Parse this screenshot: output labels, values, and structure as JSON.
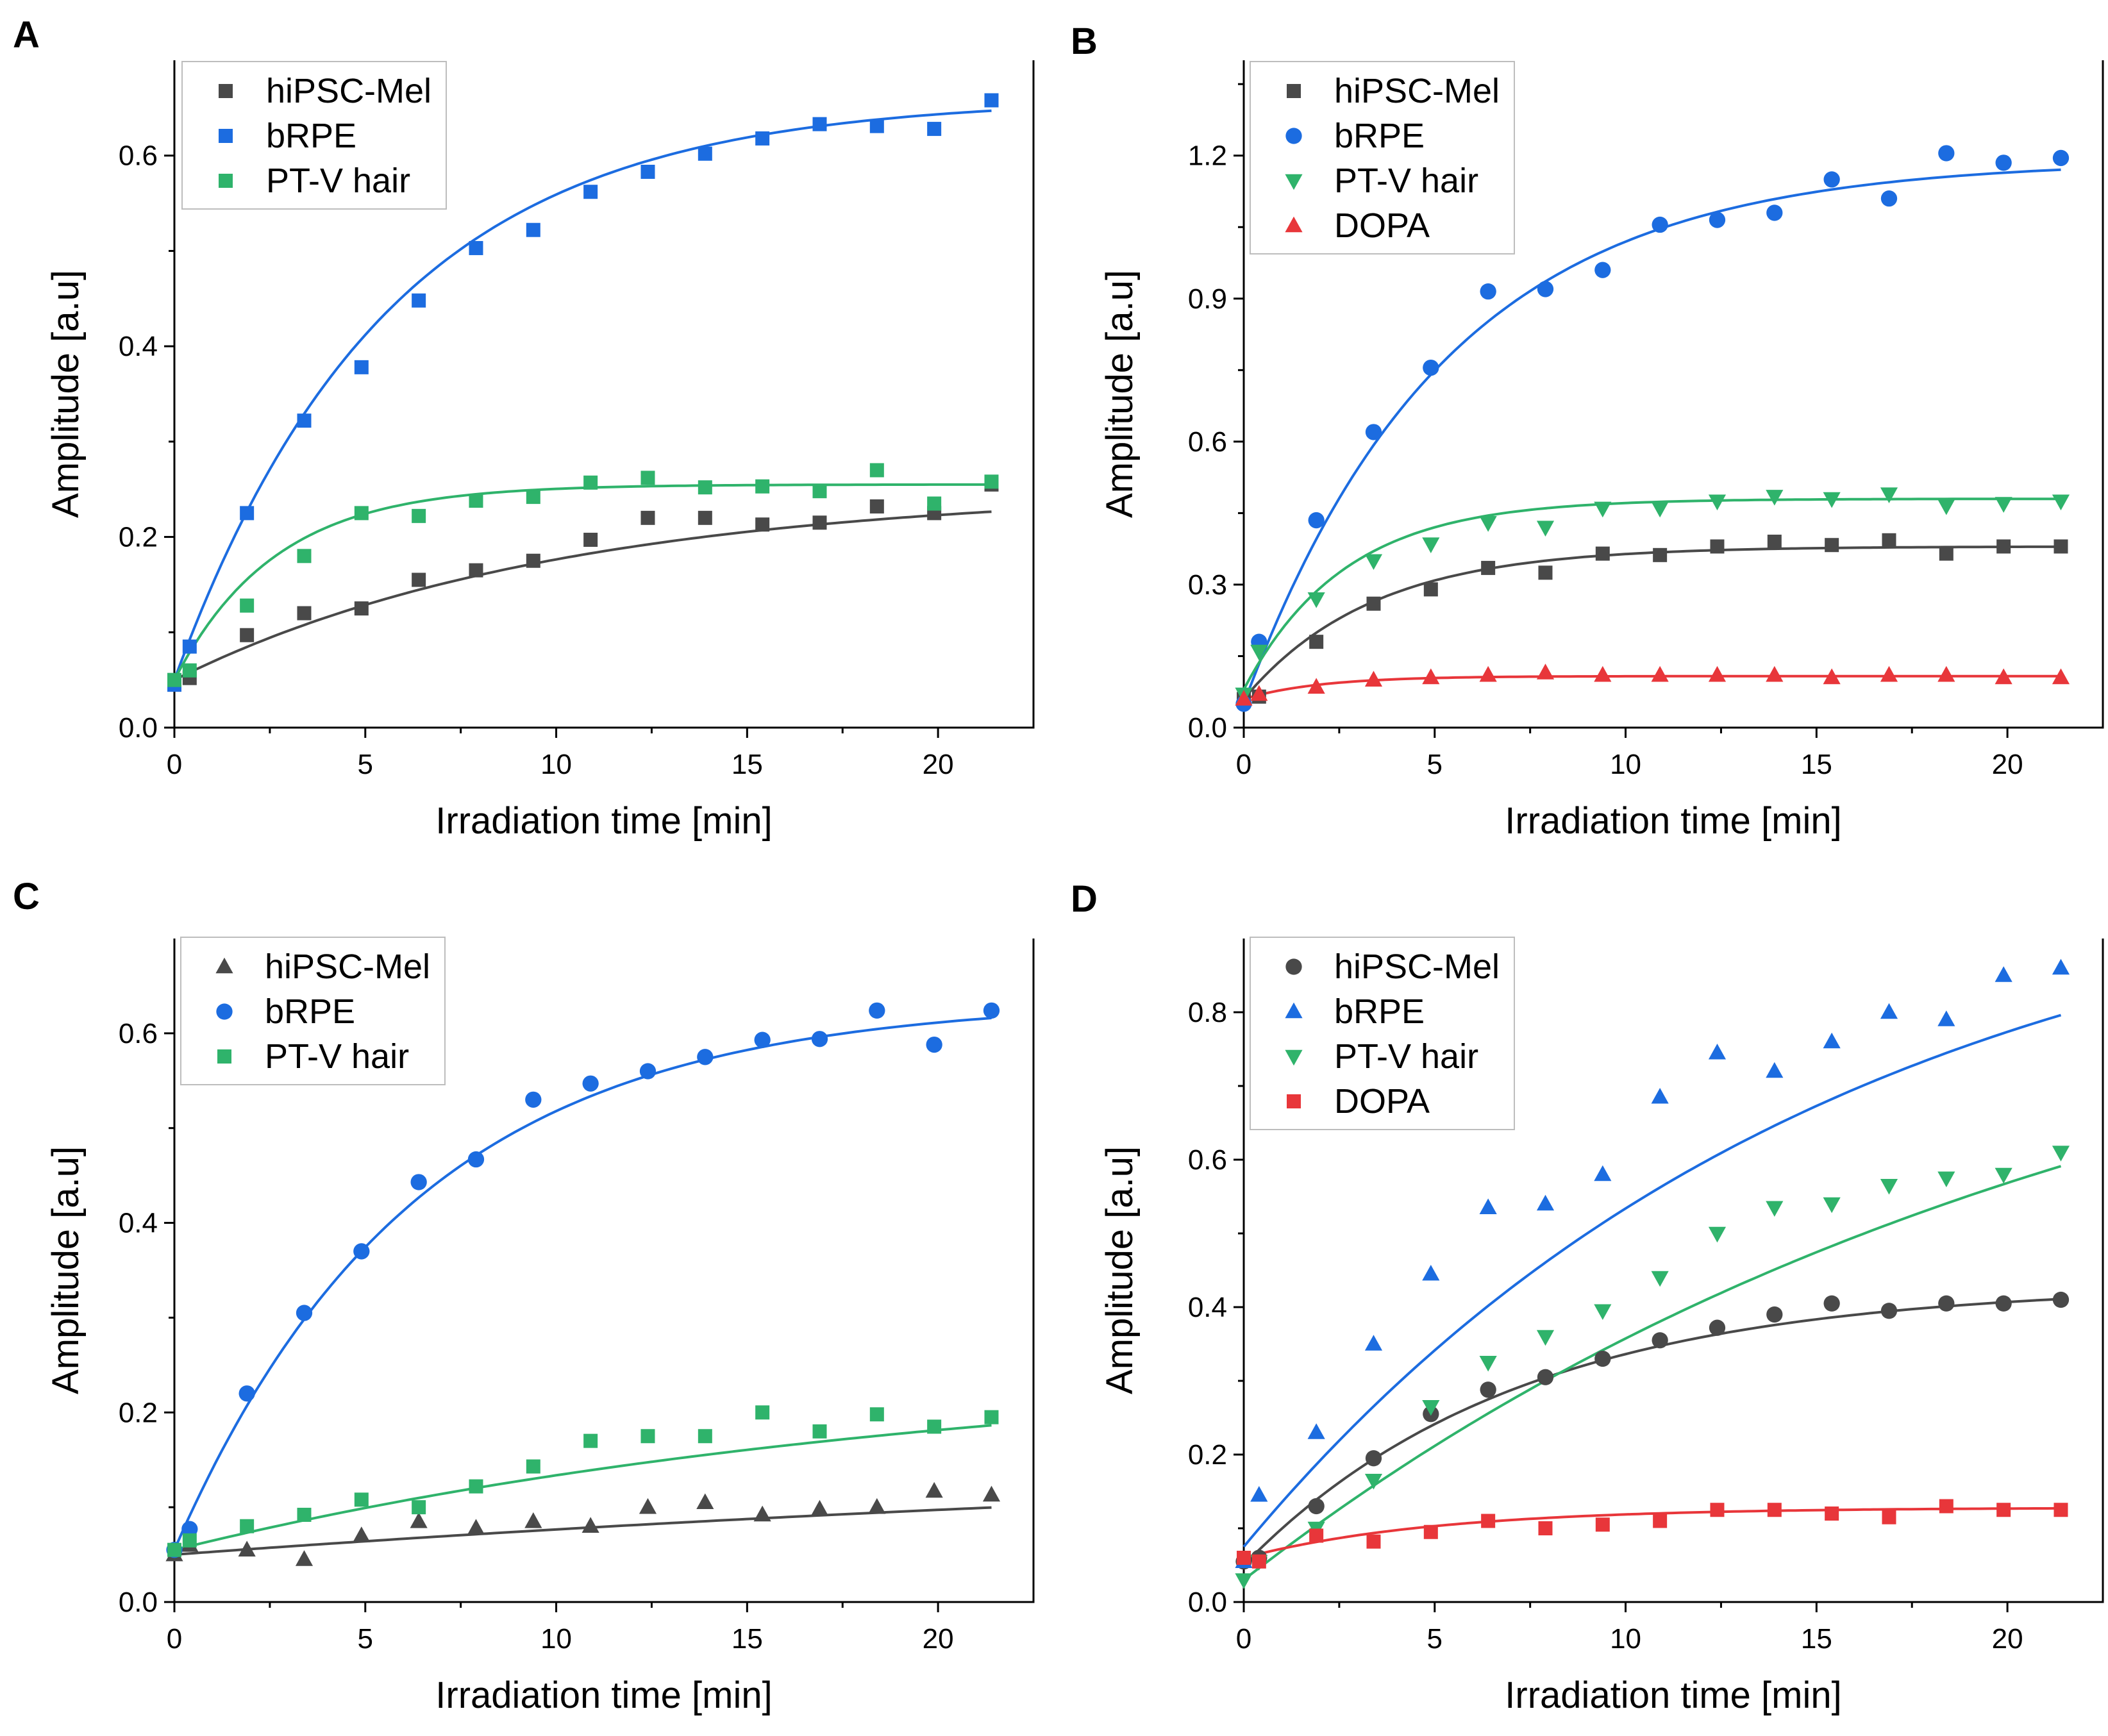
{
  "figure": {
    "colors": {
      "hiPSC-Mel": "#494949",
      "bRPE": "#1c6ce0",
      "PT-V hair": "#2fb36b",
      "DOPA": "#e8363a",
      "axis": "#000000"
    }
  },
  "chart_data": [
    {
      "panel": "A",
      "type": "scatter",
      "xlabel": "Irradiation time [min]",
      "ylabel": "Amplitude [a.u]",
      "xlim": [
        0,
        22.5
      ],
      "ylim": [
        0,
        0.7
      ],
      "xticks": [
        0,
        5,
        10,
        15,
        20
      ],
      "yticks": [
        0.0,
        0.2,
        0.4,
        0.6
      ],
      "ytick_labels": [
        "0.0",
        "0.2",
        "0.4",
        "0.6"
      ],
      "legend_position": "top-left",
      "series": [
        {
          "name": "hiPSC-Mel",
          "marker": "square",
          "color": "#494949",
          "x": [
            0,
            0.4,
            1.9,
            3.4,
            4.9,
            6.4,
            7.9,
            9.4,
            10.9,
            12.4,
            13.9,
            15.4,
            16.9,
            18.4,
            19.9,
            21.4
          ],
          "y": [
            0.045,
            0.052,
            0.097,
            0.12,
            0.125,
            0.155,
            0.165,
            0.175,
            0.197,
            0.22,
            0.22,
            0.213,
            0.215,
            0.232,
            0.225,
            0.255
          ],
          "fit": [
            0.05,
            0.2,
            0.1
          ]
        },
        {
          "name": "bRPE",
          "marker": "square",
          "color": "#1c6ce0",
          "x": [
            0,
            0.4,
            1.9,
            3.4,
            4.9,
            6.4,
            7.9,
            9.4,
            10.9,
            12.4,
            13.9,
            15.4,
            16.9,
            18.4,
            19.9,
            21.4
          ],
          "y": [
            0.045,
            0.085,
            0.225,
            0.322,
            0.378,
            0.448,
            0.503,
            0.522,
            0.562,
            0.583,
            0.602,
            0.618,
            0.633,
            0.631,
            0.628,
            0.658
          ],
          "fit": [
            0.05,
            0.61,
            0.18
          ]
        },
        {
          "name": "PT-V hair",
          "marker": "square",
          "color": "#2fb36b",
          "x": [
            0,
            0.4,
            1.9,
            3.4,
            4.9,
            6.4,
            7.9,
            9.4,
            10.9,
            12.4,
            13.9,
            15.4,
            16.9,
            18.4,
            19.9,
            21.4
          ],
          "y": [
            0.05,
            0.06,
            0.128,
            0.18,
            0.225,
            0.222,
            0.238,
            0.242,
            0.257,
            0.262,
            0.252,
            0.253,
            0.248,
            0.27,
            0.235,
            0.258
          ],
          "fit": [
            0.05,
            0.205,
            0.38
          ]
        }
      ]
    },
    {
      "panel": "B",
      "type": "scatter",
      "xlabel": "Irradiation time [min]",
      "ylabel": "Amplitude [a.u]",
      "xlim": [
        0,
        22.5
      ],
      "ylim": [
        0,
        1.4
      ],
      "xticks": [
        0,
        5,
        10,
        15,
        20
      ],
      "yticks": [
        0.0,
        0.3,
        0.6,
        0.9,
        1.2
      ],
      "ytick_labels": [
        "0.0",
        "0.3",
        "0.6",
        "0.9",
        "1.2"
      ],
      "legend_position": "top-left",
      "series": [
        {
          "name": "hiPSC-Mel",
          "marker": "square",
          "color": "#494949",
          "x": [
            0,
            0.4,
            1.9,
            3.4,
            4.9,
            6.4,
            7.9,
            9.4,
            10.9,
            12.4,
            13.9,
            15.4,
            16.9,
            18.4,
            19.9,
            21.4
          ],
          "y": [
            0.06,
            0.065,
            0.18,
            0.26,
            0.29,
            0.335,
            0.325,
            0.365,
            0.362,
            0.38,
            0.39,
            0.383,
            0.393,
            0.365,
            0.38,
            0.38
          ],
          "fit": [
            0.06,
            0.32,
            0.3
          ]
        },
        {
          "name": "bRPE",
          "marker": "circle",
          "color": "#1c6ce0",
          "x": [
            0,
            0.4,
            1.9,
            3.4,
            4.9,
            6.4,
            7.9,
            9.4,
            10.9,
            12.4,
            13.9,
            15.4,
            16.9,
            18.4,
            19.9,
            21.4
          ],
          "y": [
            0.05,
            0.18,
            0.435,
            0.62,
            0.755,
            0.915,
            0.92,
            0.96,
            1.055,
            1.065,
            1.08,
            1.15,
            1.11,
            1.205,
            1.185,
            1.195
          ],
          "fit": [
            0.05,
            1.14,
            0.19
          ]
        },
        {
          "name": "PT-V hair",
          "marker": "triangle-down",
          "color": "#2fb36b",
          "x": [
            0,
            0.4,
            1.9,
            3.4,
            4.9,
            6.4,
            7.9,
            9.4,
            10.9,
            12.4,
            13.9,
            15.4,
            16.9,
            18.4,
            19.9,
            21.4
          ],
          "y": [
            0.07,
            0.16,
            0.27,
            0.35,
            0.385,
            0.43,
            0.42,
            0.46,
            0.46,
            0.475,
            0.485,
            0.48,
            0.49,
            0.465,
            0.47,
            0.475
          ],
          "fit": [
            0.08,
            0.4,
            0.38
          ]
        },
        {
          "name": "DOPA",
          "marker": "triangle-up",
          "color": "#e8363a",
          "x": [
            0,
            0.4,
            1.9,
            3.4,
            4.9,
            6.4,
            7.9,
            9.4,
            10.9,
            12.4,
            13.9,
            15.4,
            16.9,
            18.4,
            19.9,
            21.4
          ],
          "y": [
            0.06,
            0.07,
            0.085,
            0.1,
            0.105,
            0.11,
            0.115,
            0.11,
            0.11,
            0.11,
            0.11,
            0.105,
            0.11,
            0.11,
            0.105,
            0.105
          ],
          "fit": [
            0.06,
            0.048,
            0.5
          ]
        }
      ]
    },
    {
      "panel": "C",
      "type": "scatter",
      "xlabel": "Irradiation time [min]",
      "ylabel": "Amplitude [a.u]",
      "xlim": [
        0,
        22.5
      ],
      "ylim": [
        0,
        0.7
      ],
      "xticks": [
        0,
        5,
        10,
        15,
        20
      ],
      "yticks": [
        0.0,
        0.2,
        0.4,
        0.6
      ],
      "ytick_labels": [
        "0.0",
        "0.2",
        "0.4",
        "0.6"
      ],
      "legend_position": "top-left",
      "series": [
        {
          "name": "hiPSC-Mel",
          "marker": "triangle-up",
          "color": "#494949",
          "x": [
            0,
            0.4,
            1.9,
            3.4,
            4.9,
            6.4,
            7.9,
            9.4,
            10.9,
            12.4,
            13.9,
            15.4,
            16.9,
            18.4,
            19.9,
            21.4
          ],
          "y": [
            0.05,
            0.06,
            0.055,
            0.045,
            0.07,
            0.085,
            0.078,
            0.085,
            0.08,
            0.1,
            0.105,
            0.092,
            0.098,
            0.1,
            0.117,
            0.113
          ],
          "fit": [
            0.05,
            0.12,
            0.025
          ]
        },
        {
          "name": "bRPE",
          "marker": "circle",
          "color": "#1c6ce0",
          "x": [
            0,
            0.4,
            1.9,
            3.4,
            4.9,
            6.4,
            7.9,
            9.4,
            10.9,
            12.4,
            13.9,
            15.4,
            16.9,
            18.4,
            19.9,
            21.4
          ],
          "y": [
            0.055,
            0.077,
            0.22,
            0.305,
            0.37,
            0.443,
            0.467,
            0.53,
            0.547,
            0.56,
            0.575,
            0.593,
            0.594,
            0.624,
            0.588,
            0.624
          ],
          "fit": [
            0.055,
            0.58,
            0.16
          ]
        },
        {
          "name": "PT-V hair",
          "marker": "square",
          "color": "#2fb36b",
          "x": [
            0,
            0.4,
            1.9,
            3.4,
            4.9,
            6.4,
            7.9,
            9.4,
            10.9,
            12.4,
            13.9,
            15.4,
            16.9,
            18.4,
            19.9,
            21.4
          ],
          "y": [
            0.055,
            0.065,
            0.08,
            0.092,
            0.108,
            0.1,
            0.122,
            0.143,
            0.17,
            0.175,
            0.175,
            0.2,
            0.18,
            0.198,
            0.185,
            0.195
          ],
          "fit": [
            0.055,
            0.2,
            0.05
          ]
        }
      ]
    },
    {
      "panel": "D",
      "type": "scatter",
      "xlabel": "Irradiation time [min]",
      "ylabel": "Amplitude [a.u]",
      "xlim": [
        0,
        22.5
      ],
      "ylim": [
        0,
        0.9
      ],
      "xticks": [
        0,
        5,
        10,
        15,
        20
      ],
      "yticks": [
        0.0,
        0.2,
        0.4,
        0.6,
        0.8
      ],
      "ytick_labels": [
        "0.0",
        "0.2",
        "0.4",
        "0.6",
        "0.8"
      ],
      "legend_position": "top-left",
      "series": [
        {
          "name": "hiPSC-Mel",
          "marker": "circle",
          "color": "#494949",
          "x": [
            0,
            0.4,
            1.9,
            3.4,
            4.9,
            6.4,
            7.9,
            9.4,
            10.9,
            12.4,
            13.9,
            15.4,
            16.9,
            18.4,
            19.9,
            21.4
          ],
          "y": [
            0.055,
            0.06,
            0.13,
            0.195,
            0.255,
            0.288,
            0.305,
            0.33,
            0.355,
            0.372,
            0.39,
            0.405,
            0.395,
            0.405,
            0.405,
            0.41
          ],
          "fit": [
            0.05,
            0.38,
            0.14
          ]
        },
        {
          "name": "bRPE",
          "marker": "triangle-up",
          "color": "#1c6ce0",
          "x": [
            0,
            0.4,
            1.9,
            3.4,
            4.9,
            6.4,
            7.9,
            9.4,
            10.9,
            12.4,
            13.9,
            15.4,
            16.9,
            18.4,
            19.9,
            21.4
          ],
          "y": [
            0.055,
            0.145,
            0.23,
            0.35,
            0.445,
            0.535,
            0.54,
            0.58,
            0.685,
            0.745,
            0.72,
            0.76,
            0.8,
            0.79,
            0.85,
            0.86
          ],
          "fit": [
            0.075,
            0.96,
            0.065
          ]
        },
        {
          "name": "PT-V hair",
          "marker": "triangle-down",
          "color": "#2fb36b",
          "x": [
            0,
            0.4,
            1.9,
            3.4,
            4.9,
            6.4,
            7.9,
            9.4,
            10.9,
            12.4,
            13.9,
            15.4,
            16.9,
            18.4,
            19.9,
            21.4
          ],
          "y": [
            0.03,
            0.055,
            0.1,
            0.165,
            0.265,
            0.325,
            0.36,
            0.395,
            0.44,
            0.5,
            0.535,
            0.54,
            0.565,
            0.575,
            0.58,
            0.61
          ],
          "fit": [
            0.03,
            0.92,
            0.044
          ]
        },
        {
          "name": "DOPA",
          "marker": "square",
          "color": "#e8363a",
          "x": [
            0,
            0.4,
            1.9,
            3.4,
            4.9,
            6.4,
            7.9,
            9.4,
            10.9,
            12.4,
            13.9,
            15.4,
            16.9,
            18.4,
            19.9,
            21.4
          ],
          "y": [
            0.06,
            0.055,
            0.09,
            0.082,
            0.095,
            0.11,
            0.1,
            0.105,
            0.11,
            0.125,
            0.125,
            0.12,
            0.115,
            0.13,
            0.125,
            0.125
          ],
          "fit": [
            0.06,
            0.068,
            0.2
          ]
        }
      ]
    }
  ]
}
